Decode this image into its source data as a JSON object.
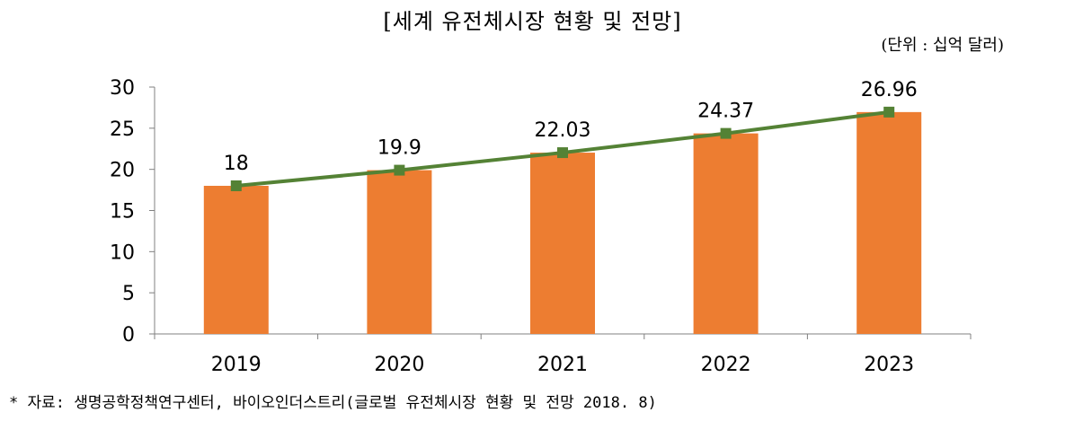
{
  "title": "[세계  유전체시장 현황 및 전망]",
  "unit": "(단위 : 십억 달러)",
  "source": "* 자료: 생명공학정책연구센터, 바이오인더스트리(글로벌 유전체시장 현황 및 전망 2018. 8)",
  "colors": {
    "bar": "#ED7D31",
    "line": "#548235",
    "marker": "#548235",
    "axis": "#808080"
  },
  "chart_data": {
    "type": "bar",
    "categories": [
      "2019",
      "2020",
      "2021",
      "2022",
      "2023"
    ],
    "series": [
      {
        "type": "bar",
        "values": [
          18,
          19.9,
          22.03,
          24.37,
          26.96
        ]
      },
      {
        "type": "line",
        "values": [
          18,
          19.9,
          22.03,
          24.37,
          26.96
        ]
      }
    ],
    "data_labels": [
      "18",
      "19.9",
      "22.03",
      "24.37",
      "26.96"
    ],
    "ylim": [
      0,
      30
    ],
    "yticks": [
      "0",
      "5",
      "10",
      "15",
      "20",
      "25",
      "30"
    ],
    "legend": "none",
    "grid": false
  }
}
